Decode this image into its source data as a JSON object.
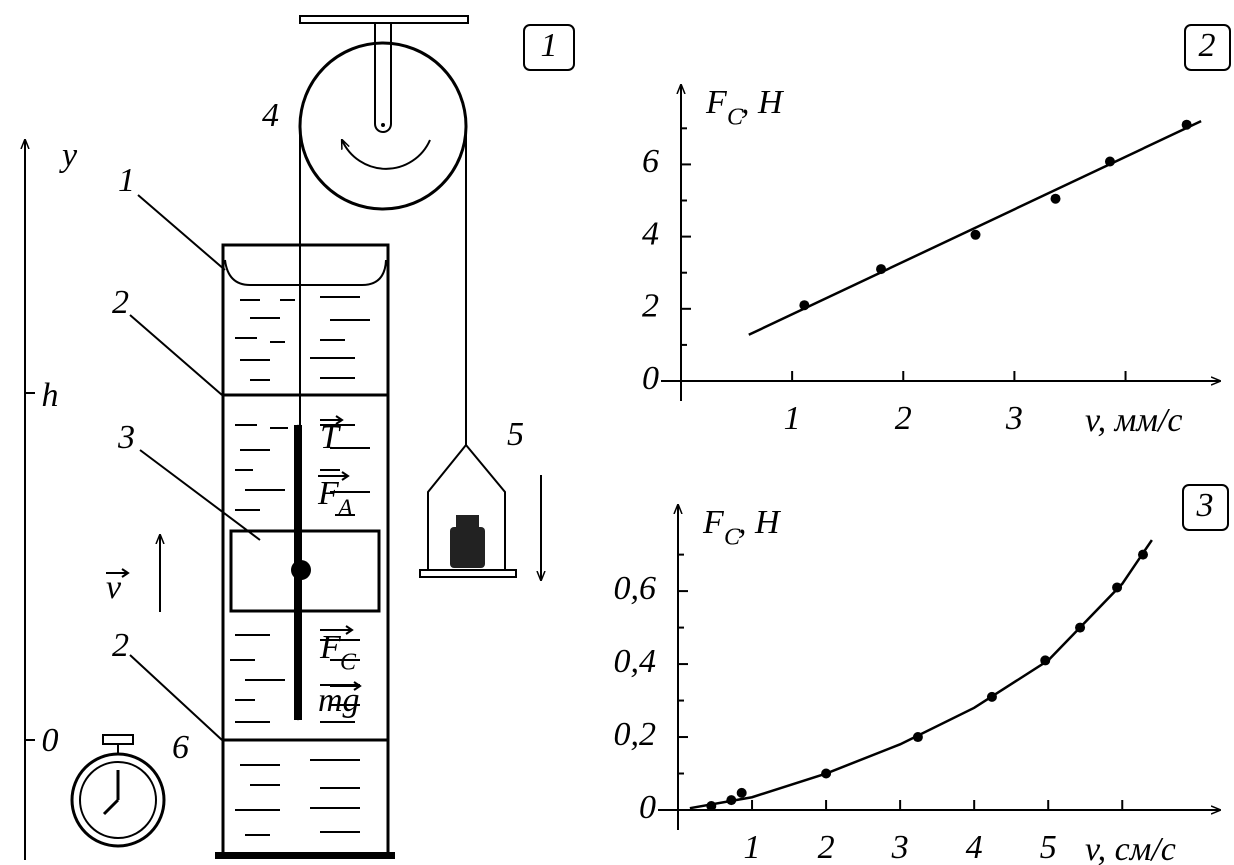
{
  "diagram": {
    "badge": "1",
    "axis_label": "y",
    "level_top": "h",
    "level_bottom": "0",
    "labels": {
      "cylinder": "1",
      "mark_top": "2",
      "block": "3",
      "mark_bottom": "2",
      "pulley": "4",
      "pan": "5",
      "stopwatch": "6"
    },
    "vectors": {
      "tension": "T",
      "archimedes": "F",
      "archimedes_sub": "A",
      "drag": "F",
      "drag_sub": "C",
      "gravity": "mg",
      "velocity": "v"
    }
  },
  "chart_data": [
    {
      "type": "scatter",
      "panel": "2",
      "y_label": "F",
      "y_label_sub": "C",
      "y_label_unit": ", Н",
      "x_label": "v, мм/с",
      "x": [
        1.11,
        1.8,
        2.65,
        3.37,
        3.86,
        4.55
      ],
      "y": [
        2.1,
        3.1,
        4.05,
        5.05,
        6.08,
        7.1
      ],
      "fit": {
        "x": [
          0.61,
          4.68
        ],
        "y": [
          1.28,
          7.2
        ]
      },
      "color": "#000000",
      "xlim": [
        0,
        4.85
      ],
      "ylim": [
        0,
        8.2
      ],
      "xticks": [
        1,
        2,
        3
      ],
      "x_minor_ticks": [
        4
      ],
      "yticks": [
        0,
        2,
        4,
        6
      ],
      "y_minor_ticks": [
        1,
        3,
        5,
        7
      ]
    },
    {
      "type": "scatter",
      "panel": "3",
      "y_label": "F",
      "y_label_sub": "C",
      "y_label_unit": ", Н",
      "x_label": "v, см/с",
      "x": [
        0.45,
        0.72,
        0.86,
        2.0,
        3.24,
        4.24,
        4.96,
        5.43,
        5.93,
        6.28
      ],
      "y": [
        0.011,
        0.027,
        0.047,
        0.1,
        0.2,
        0.31,
        0.41,
        0.5,
        0.61,
        0.7
      ],
      "fit": {
        "x": [
          0.16,
          1,
          2,
          3,
          4,
          5,
          6,
          6.4
        ],
        "y": [
          0.005,
          0.035,
          0.1,
          0.18,
          0.28,
          0.41,
          0.62,
          0.74
        ]
      },
      "color": "#000000",
      "xlim": [
        0,
        7.32
      ],
      "ylim": [
        0,
        0.836
      ],
      "xticks": [
        1,
        2,
        3,
        4,
        5
      ],
      "x_minor_ticks": [
        6
      ],
      "yticks": [
        0,
        {
          "value": 0.2,
          "label": "0,2"
        },
        {
          "value": 0.4,
          "label": "0,4"
        },
        {
          "value": 0.6,
          "label": "0,6"
        }
      ],
      "y_minor_ticks": [
        0.1,
        0.3,
        0.5,
        0.7
      ]
    }
  ]
}
